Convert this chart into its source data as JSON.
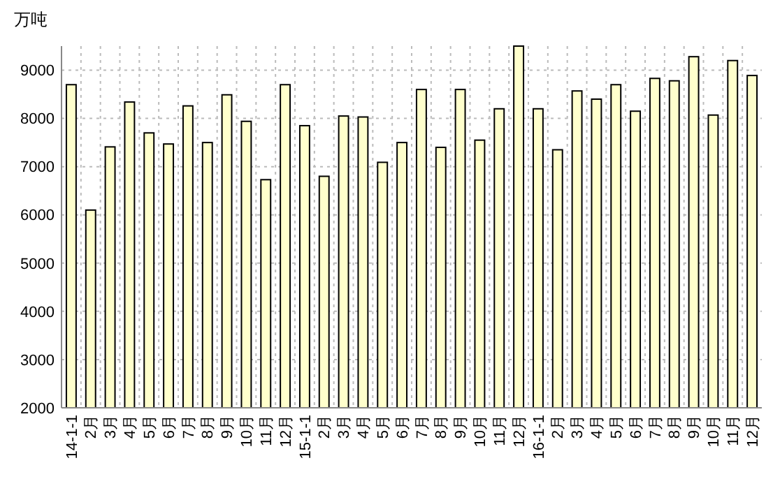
{
  "chart_data": {
    "type": "bar",
    "ylabel": "万吨",
    "categories": [
      "14-1-1",
      "2月",
      "3月",
      "4月",
      "5月",
      "6月",
      "7月",
      "8月",
      "9月",
      "10月",
      "11月",
      "12月",
      "15-1-1",
      "2月",
      "3月",
      "4月",
      "5月",
      "6月",
      "7月",
      "8月",
      "9月",
      "10月",
      "11月",
      "12月",
      "16-1-1",
      "2月",
      "3月",
      "4月",
      "5月",
      "6月",
      "7月",
      "8月",
      "9月",
      "10月",
      "11月",
      "12月"
    ],
    "values": [
      8700,
      6100,
      7410,
      8340,
      7700,
      7470,
      8260,
      7500,
      8490,
      7940,
      6730,
      8700,
      7850,
      6800,
      8050,
      8030,
      7090,
      7500,
      8600,
      7400,
      8600,
      7550,
      8200,
      9500,
      8200,
      7350,
      8570,
      8400,
      8700,
      8150,
      8830,
      8780,
      9280,
      8070,
      9200,
      8890
    ],
    "color": "#ffffcc",
    "ylim": [
      2000,
      9500
    ],
    "yticks": [
      2000,
      3000,
      4000,
      5000,
      6000,
      7000,
      8000,
      9000
    ],
    "grid": true
  }
}
